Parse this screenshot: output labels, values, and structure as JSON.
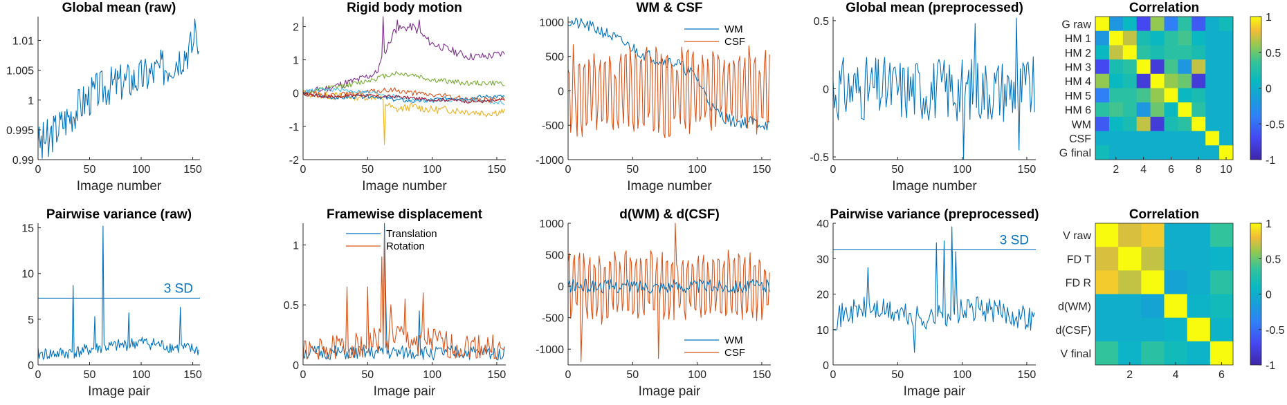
{
  "colors": {
    "blue": "#0072BD",
    "orange": "#D95319",
    "yellow": "#EDB120",
    "purple": "#7E2F8E",
    "green": "#77AC30",
    "cyan": "#4DBEEE",
    "red": "#A2142F",
    "axis": "#262626"
  },
  "chart_data": [
    {
      "id": "global-mean-raw",
      "type": "line",
      "title": "Global mean (raw)",
      "xlabel": "Image number",
      "ylabel": "",
      "xlim": [
        0,
        157
      ],
      "ylim": [
        0.99,
        1.014
      ],
      "xticks": [
        0,
        50,
        100,
        150
      ],
      "xtick_labels": [
        "0",
        "50",
        "100",
        "150"
      ],
      "yticks": [
        0.99,
        0.995,
        1.0,
        1.005,
        1.01
      ],
      "ytick_labels": [
        "0.99",
        "0.995",
        "1",
        "1.005",
        "1.01"
      ],
      "series": [
        {
          "color": "blue",
          "base": [
            0.9925,
            0.9945,
            0.997,
            0.9995,
            1.0015,
            1.0025,
            1.0032,
            1.0038,
            1.0048,
            1.006,
            1.008,
            1.01
          ],
          "amp": 0.0033,
          "seed": 3,
          "spikes": [
            [
              0,
              0.993
            ],
            [
              4,
              0.9902
            ],
            [
              10,
              0.9905
            ],
            [
              152,
              1.0136
            ],
            [
              156,
              1.0082
            ]
          ]
        }
      ]
    },
    {
      "id": "rigid-body-motion",
      "type": "line",
      "title": "Rigid body motion",
      "xlabel": "Image number",
      "ylabel": "",
      "xlim": [
        0,
        157
      ],
      "ylim": [
        -2,
        2.3
      ],
      "xticks": [
        0,
        50,
        100,
        150
      ],
      "xtick_labels": [
        "0",
        "50",
        "100",
        "150"
      ],
      "yticks": [
        -2,
        -1,
        0,
        1,
        2
      ],
      "ytick_labels": [
        "-2",
        "-1",
        "0",
        "1",
        "2"
      ],
      "series": [
        {
          "color": "purple",
          "base": [
            0.0,
            0.1,
            0.25,
            0.4,
            0.6,
            1.9,
            2.0,
            1.5,
            1.3,
            1.1,
            1.1,
            1.2
          ],
          "amp": 0.12,
          "seed": 11,
          "spikes": [
            [
              62,
              2.3
            ],
            [
              73,
              2.2
            ],
            [
              90,
              2.2
            ]
          ]
        },
        {
          "color": "green",
          "base": [
            0.0,
            0.1,
            0.2,
            0.3,
            0.45,
            0.6,
            0.55,
            0.4,
            0.35,
            0.3,
            0.3,
            0.3
          ],
          "amp": 0.08,
          "seed": 12
        },
        {
          "color": "yellow",
          "base": [
            0.0,
            -0.05,
            -0.1,
            -0.1,
            -0.1,
            -0.5,
            -0.4,
            -0.5,
            -0.5,
            -0.55,
            -0.6,
            -0.55
          ],
          "amp": 0.12,
          "seed": 13,
          "spikes": [
            [
              63,
              -1.55
            ]
          ]
        },
        {
          "color": "blue",
          "base": [
            0.0,
            -0.1,
            -0.15,
            -0.1,
            -0.1,
            -0.2,
            -0.25,
            -0.2,
            -0.15,
            -0.15,
            -0.1,
            -0.1
          ],
          "amp": 0.06,
          "seed": 14
        },
        {
          "color": "orange",
          "base": [
            0.0,
            -0.05,
            -0.05,
            0.0,
            0.05,
            0.1,
            0.0,
            -0.05,
            -0.1,
            -0.2,
            -0.2,
            -0.2
          ],
          "amp": 0.08,
          "seed": 15
        },
        {
          "color": "cyan",
          "base": [
            0.05,
            0.1,
            0.1,
            0.05,
            0.0,
            -0.1,
            -0.2,
            -0.25,
            -0.2,
            -0.2,
            -0.25,
            -0.3
          ],
          "amp": 0.06,
          "seed": 16
        },
        {
          "color": "red",
          "base": [
            0.0,
            -0.1,
            -0.1,
            -0.05,
            -0.1,
            -0.1,
            -0.15,
            -0.2,
            -0.2,
            -0.25,
            -0.25,
            -0.2
          ],
          "amp": 0.05,
          "seed": 17
        }
      ]
    },
    {
      "id": "wm-csf",
      "type": "line",
      "title": "WM & CSF",
      "xlabel": "Image number",
      "ylabel": "",
      "xlim": [
        0,
        157
      ],
      "ylim": [
        -1000,
        1080
      ],
      "xticks": [
        0,
        50,
        100,
        150
      ],
      "xtick_labels": [
        "0",
        "50",
        "100",
        "150"
      ],
      "yticks": [
        -1000,
        -500,
        0,
        500,
        1000
      ],
      "ytick_labels": [
        "-1000",
        "-500",
        "0",
        "500",
        "1000"
      ],
      "legend": {
        "position": "top-right",
        "items": [
          "WM",
          "CSF"
        ]
      },
      "series": [
        {
          "name": "WM",
          "color": "blue",
          "base": [
            1000,
            950,
            850,
            700,
            550,
            450,
            400,
            200,
            -300,
            -450,
            -450,
            -500
          ],
          "amp": 90,
          "seed": 21
        },
        {
          "name": "CSF",
          "color": "orange",
          "base": [
            0,
            0,
            0,
            0,
            0,
            0,
            0,
            0,
            0,
            0,
            0,
            0
          ],
          "amp": 620,
          "seed": 22,
          "alternate": true,
          "altAmp": 560
        }
      ]
    },
    {
      "id": "global-mean-preprocessed",
      "type": "line",
      "title": "Global mean (preprocessed)",
      "xlabel": "Image number",
      "ylabel": "",
      "xlim": [
        0,
        157
      ],
      "ylim": [
        -0.52,
        0.53
      ],
      "xticks": [
        0,
        50,
        100,
        150
      ],
      "xtick_labels": [
        "0",
        "50",
        "100",
        "150"
      ],
      "yticks": [
        -0.5,
        0,
        0.5
      ],
      "ytick_labels": [
        "-0.5",
        "0",
        "0.5"
      ],
      "series": [
        {
          "color": "blue",
          "base": [
            0,
            0,
            0,
            0,
            0,
            0,
            0,
            0,
            0,
            0,
            0,
            0
          ],
          "amp": 0.24,
          "seed": 31,
          "spikes": [
            [
              101,
              -0.52
            ],
            [
              110,
              0.48
            ],
            [
              142,
              0.52
            ],
            [
              144,
              -0.45
            ]
          ]
        }
      ]
    },
    {
      "id": "correlation-top",
      "type": "heatmap",
      "title": "Correlation",
      "row_labels": [
        "G raw",
        "HM 1",
        "HM 2",
        "HM 3",
        "HM 4",
        "HM 5",
        "HM 6",
        "WM",
        "CSF",
        "G final"
      ],
      "xticks": [
        2,
        4,
        6,
        8,
        10
      ],
      "xtick_labels": [
        "2",
        "4",
        "6",
        "8",
        "10"
      ],
      "colorbar": {
        "ticks": [
          1,
          0.5,
          0,
          -0.5,
          -1
        ],
        "tick_labels": [
          "1",
          "0.5",
          "0",
          "-0.5",
          "-1"
        ]
      },
      "matrix": [
        [
          1,
          -0.2,
          0.1,
          -0.7,
          0.6,
          -0.4,
          0.3,
          -0.6,
          0.0,
          0.15
        ],
        [
          -0.2,
          1,
          0.7,
          0.2,
          0.1,
          0.3,
          0.4,
          0.1,
          0.0,
          0.0
        ],
        [
          0.1,
          0.7,
          1,
          0.3,
          0.2,
          0.3,
          0.3,
          0.2,
          0.0,
          0.0
        ],
        [
          -0.7,
          0.2,
          0.3,
          1,
          -0.8,
          0.4,
          -0.2,
          0.7,
          0.0,
          0.0
        ],
        [
          0.6,
          0.1,
          0.2,
          -0.8,
          1,
          0.6,
          0.5,
          -0.8,
          0.0,
          0.0
        ],
        [
          -0.4,
          0.3,
          0.3,
          0.4,
          0.6,
          1,
          0.1,
          0.2,
          0.0,
          0.0
        ],
        [
          0.3,
          0.4,
          0.3,
          -0.2,
          0.5,
          0.1,
          1,
          0.3,
          0.0,
          0.0
        ],
        [
          -0.6,
          0.1,
          0.2,
          0.7,
          -0.8,
          0.2,
          0.3,
          1,
          0.0,
          0.0
        ],
        [
          0.0,
          0.0,
          0.0,
          0.0,
          0.0,
          0.0,
          0.0,
          0.0,
          1,
          0.0
        ],
        [
          0.15,
          0.0,
          0.0,
          0.0,
          0.0,
          0.0,
          0.0,
          0.0,
          0.0,
          1
        ]
      ]
    },
    {
      "id": "pairwise-variance-raw",
      "type": "line",
      "title": "Pairwise variance (raw)",
      "xlabel": "Image pair",
      "ylabel": "",
      "xlim": [
        0,
        157
      ],
      "ylim": [
        0,
        15.5
      ],
      "xticks": [
        0,
        50,
        100,
        150
      ],
      "xtick_labels": [
        "0",
        "50",
        "100",
        "150"
      ],
      "yticks": [
        0,
        5,
        10,
        15
      ],
      "ytick_labels": [
        "0",
        "5",
        "10",
        "15"
      ],
      "hline": {
        "y": 7.3,
        "label": "3 SD",
        "color": "blue"
      },
      "series": [
        {
          "color": "blue",
          "base": [
            1.2,
            1.2,
            1.3,
            1.5,
            1.8,
            2.0,
            2.2,
            2.5,
            2.3,
            2.0,
            1.8,
            1.6
          ],
          "amp": 0.7,
          "seed": 41,
          "positive": true,
          "spikes": [
            [
              34,
              8.7
            ],
            [
              55,
              5.3
            ],
            [
              63,
              15.2
            ],
            [
              88,
              5.7
            ],
            [
              138,
              6.3
            ]
          ]
        }
      ]
    },
    {
      "id": "framewise-displacement",
      "type": "line",
      "title": "Framewise displacement",
      "xlabel": "Image pair",
      "ylabel": "",
      "xlim": [
        0,
        157
      ],
      "ylim": [
        0,
        1.18
      ],
      "xticks": [
        0,
        50,
        100,
        150
      ],
      "xtick_labels": [
        "0",
        "50",
        "100",
        "150"
      ],
      "yticks": [
        0,
        0.5,
        1
      ],
      "ytick_labels": [
        "0",
        "0.5",
        "1"
      ],
      "legend": {
        "position": "top-center",
        "items": [
          "Translation",
          "Rotation"
        ]
      },
      "series": [
        {
          "name": "Translation",
          "color": "blue",
          "base": [
            0.1,
            0.1,
            0.1,
            0.1,
            0.1,
            0.1,
            0.1,
            0.1,
            0.1,
            0.1,
            0.1,
            0.1
          ],
          "amp": 0.06,
          "seed": 51,
          "positive": true,
          "spikes": [
            [
              63,
              1.18
            ],
            [
              64,
              0.6
            ],
            [
              90,
              0.45
            ]
          ]
        },
        {
          "name": "Rotation",
          "color": "orange",
          "base": [
            0.1,
            0.1,
            0.15,
            0.15,
            0.2,
            0.25,
            0.2,
            0.2,
            0.15,
            0.15,
            0.15,
            0.1
          ],
          "amp": 0.12,
          "seed": 52,
          "positive": true,
          "spikes": [
            [
              34,
              0.65
            ],
            [
              50,
              0.65
            ],
            [
              61,
              0.9
            ],
            [
              63,
              1.1
            ],
            [
              68,
              0.5
            ],
            [
              79,
              0.55
            ],
            [
              93,
              0.6
            ]
          ]
        }
      ]
    },
    {
      "id": "d-wm-d-csf",
      "type": "line",
      "title": "d(WM) & d(CSF)",
      "xlabel": "Image pair",
      "ylabel": "",
      "xlim": [
        0,
        157
      ],
      "ylim": [
        -1250,
        1000
      ],
      "xticks": [
        0,
        50,
        100,
        150
      ],
      "xtick_labels": [
        "0",
        "50",
        "100",
        "150"
      ],
      "yticks": [
        -1000,
        -500,
        0,
        500,
        1000
      ],
      "ytick_labels": [
        "-1000",
        "-500",
        "0",
        "500",
        "1000"
      ],
      "legend": {
        "position": "bottom-right",
        "items": [
          "WM",
          "CSF"
        ]
      },
      "series": [
        {
          "name": "CSF",
          "color": "orange",
          "base": [
            0,
            0,
            0,
            0,
            0,
            0,
            0,
            0,
            0,
            0,
            0,
            0
          ],
          "amp": 450,
          "seed": 61,
          "alternate": true,
          "altAmp": 500,
          "spikes": [
            [
              10,
              -1200
            ],
            [
              70,
              -1150
            ],
            [
              83,
              1000
            ]
          ]
        },
        {
          "name": "WM",
          "color": "blue",
          "base": [
            0,
            0,
            0,
            0,
            0,
            0,
            0,
            0,
            0,
            0,
            0,
            0
          ],
          "amp": 110,
          "seed": 62
        }
      ]
    },
    {
      "id": "pairwise-variance-preprocessed",
      "type": "line",
      "title": "Pairwise variance (preprocessed)",
      "xlabel": "Image pair",
      "ylabel": "",
      "xlim": [
        0,
        157
      ],
      "ylim": [
        0,
        40
      ],
      "xticks": [
        0,
        50,
        100,
        150
      ],
      "xtick_labels": [
        "0",
        "50",
        "100",
        "150"
      ],
      "yticks": [
        0,
        10,
        20,
        30,
        40
      ],
      "ytick_labels": [
        "0",
        "10",
        "20",
        "30",
        "40"
      ],
      "hline": {
        "y": 32.5,
        "label": "3 SD",
        "color": "blue"
      },
      "series": [
        {
          "color": "blue",
          "base": [
            13,
            15,
            16,
            15,
            14,
            13,
            14,
            15,
            16,
            15,
            14,
            13
          ],
          "amp": 3.5,
          "seed": 71,
          "positive": true,
          "spikes": [
            [
              27,
              27.5
            ],
            [
              63,
              3.5
            ],
            [
              80,
              34.5
            ],
            [
              86,
              35
            ],
            [
              92,
              39
            ],
            [
              95,
              32
            ]
          ]
        }
      ]
    },
    {
      "id": "correlation-bottom",
      "type": "heatmap",
      "title": "Correlation",
      "row_labels": [
        "V raw",
        "FD T",
        "FD R",
        "d(WM)",
        "d(CSF)",
        "V final"
      ],
      "xticks": [
        2,
        4,
        6
      ],
      "xtick_labels": [
        "2",
        "4",
        "6"
      ],
      "colorbar": {
        "ticks": [
          1,
          0.5,
          0,
          -0.5,
          -1
        ],
        "tick_labels": [
          "1",
          "0.5",
          "0",
          "-0.5",
          "-1"
        ]
      },
      "matrix": [
        [
          1,
          0.75,
          0.85,
          0.0,
          0.0,
          0.35
        ],
        [
          0.75,
          1,
          0.7,
          0.0,
          0.0,
          0.05
        ],
        [
          0.85,
          0.7,
          1,
          -0.1,
          0.0,
          0.3
        ],
        [
          0.0,
          0.0,
          -0.1,
          1,
          0.05,
          0.15
        ],
        [
          0.0,
          0.0,
          0.0,
          0.05,
          1,
          0.05
        ],
        [
          0.35,
          0.05,
          0.3,
          0.15,
          0.05,
          1
        ]
      ]
    }
  ]
}
